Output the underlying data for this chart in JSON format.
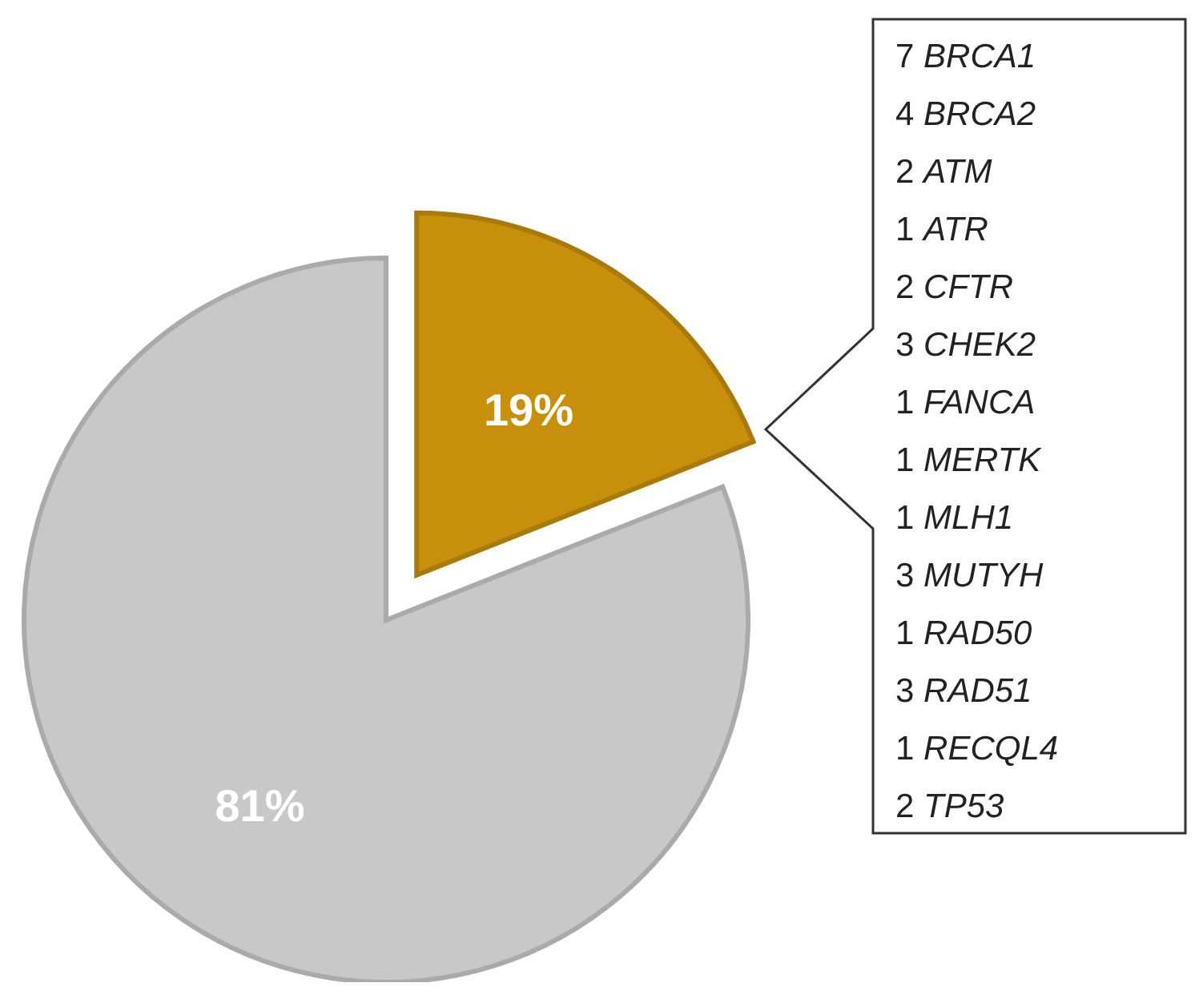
{
  "chart_data": {
    "type": "pie",
    "categories": [
      null,
      null
    ],
    "values": [
      19,
      81
    ],
    "colors": [
      "#c8900a",
      "#c8c8c8"
    ],
    "value_labels": [
      "19%",
      "81%"
    ],
    "annotations": [
      "7 BRCA1",
      "4 BRCA2",
      "2 ATM",
      "1 ATR",
      "2 CFTR",
      "3 CHEK2",
      "1 FANCA",
      "1 MERTK",
      "1 MLH1",
      "3 MUTYH",
      "1 RAD50",
      "3 RAD51",
      "1 RECQL4",
      "2 TP53"
    ]
  }
}
